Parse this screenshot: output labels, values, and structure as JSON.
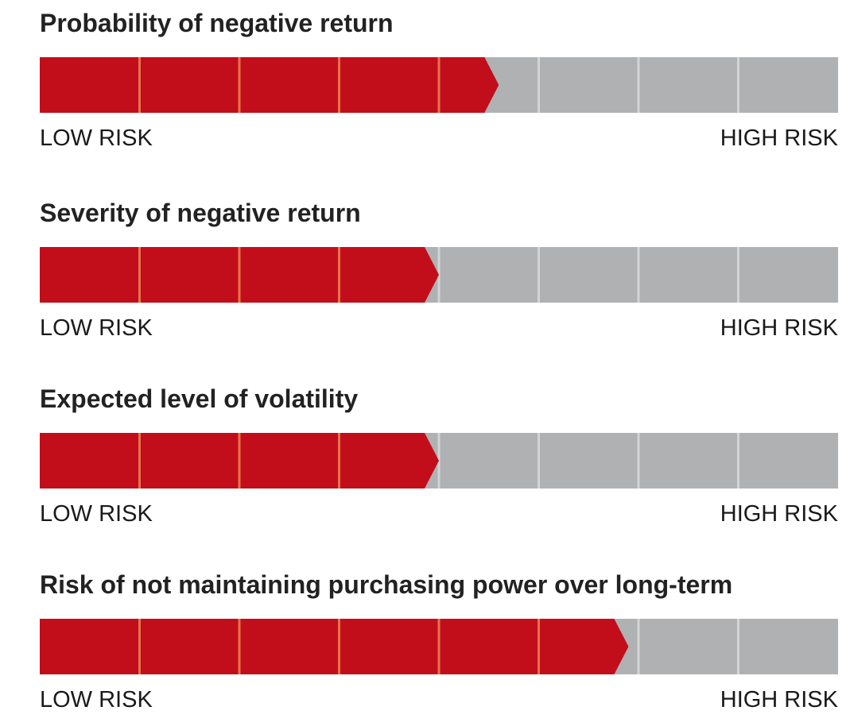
{
  "colors": {
    "filled": "#c20e1a",
    "empty": "#b0b1b3",
    "divider_on_filled": "#e8734a",
    "divider_on_empty": "#d3d4d5"
  },
  "chart_data": [
    {
      "type": "bar",
      "title": "Probability of negative return",
      "segments_total": 8,
      "level": 4.6,
      "scale_min_label": "LOW RISK",
      "scale_max_label": "HIGH RISK"
    },
    {
      "type": "bar",
      "title": "Severity of negative return",
      "segments_total": 8,
      "level": 4.0,
      "scale_min_label": "LOW RISK",
      "scale_max_label": "HIGH RISK"
    },
    {
      "type": "bar",
      "title": "Expected level of volatility",
      "segments_total": 8,
      "level": 4.0,
      "scale_min_label": "LOW RISK",
      "scale_max_label": "HIGH RISK"
    },
    {
      "type": "bar",
      "title": "Risk of not maintaining purchasing power over long-term",
      "segments_total": 8,
      "level": 5.9,
      "scale_min_label": "LOW RISK",
      "scale_max_label": "HIGH RISK"
    }
  ]
}
